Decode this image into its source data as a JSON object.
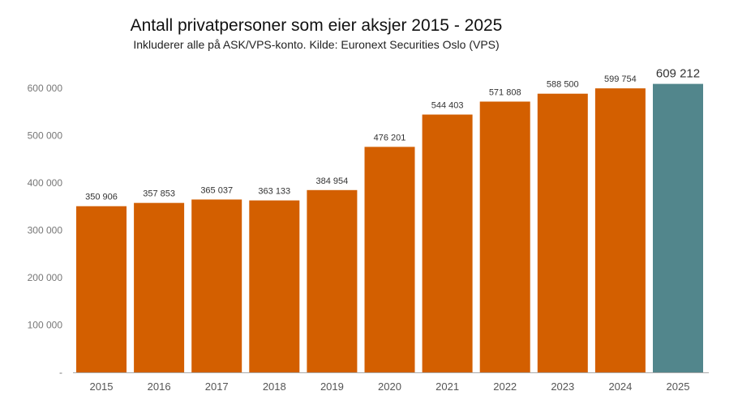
{
  "chart_data": {
    "type": "bar",
    "title": "Antall privatpersoner som eier aksjer 2015 - 2025",
    "subtitle": "Inkluderer alle på ASK/VPS-konto. Kilde: Euronext Securities Oslo (VPS)",
    "categories": [
      "2015",
      "2016",
      "2017",
      "2018",
      "2019",
      "2020",
      "2021",
      "2022",
      "2023",
      "2024",
      "2025"
    ],
    "values": [
      350906,
      357853,
      365037,
      363133,
      384954,
      476201,
      544403,
      571808,
      588500,
      599754,
      609212
    ],
    "value_labels": [
      "350 906",
      "357 853",
      "365 037",
      "363 133",
      "384 954",
      "476 201",
      "544 403",
      "571 808",
      "588 500",
      "599 754",
      "609 212"
    ],
    "yticks": [
      0,
      100000,
      200000,
      300000,
      400000,
      500000,
      600000
    ],
    "ytick_labels": [
      "-",
      "100 000",
      "200 000",
      "300 000",
      "400 000",
      "500 000",
      "600 000"
    ],
    "ylim": [
      0,
      610000
    ],
    "grid": false,
    "colors": {
      "default": "#d35f00",
      "highlight": "#52868c"
    },
    "highlight_index": 10
  }
}
